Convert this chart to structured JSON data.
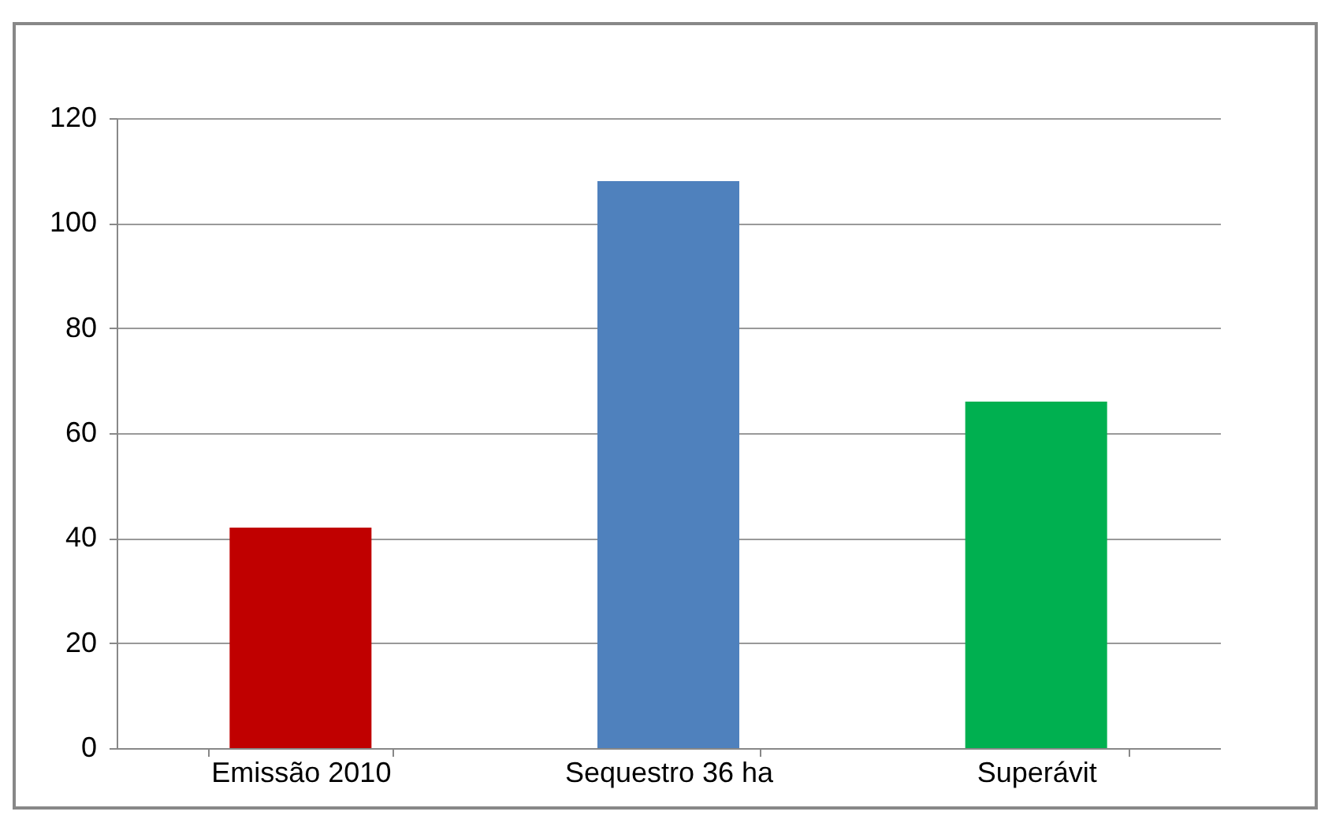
{
  "chart_data": {
    "type": "bar",
    "categories": [
      "Emissão 2010",
      "Sequestro 36 ha",
      "Superávit"
    ],
    "values": [
      42,
      108,
      66
    ],
    "colors": [
      "#c00000",
      "#4f81bd",
      "#00b050"
    ],
    "ylim": [
      0,
      120
    ],
    "yticks": [
      0,
      20,
      40,
      60,
      80,
      100,
      120
    ],
    "grid": "y"
  }
}
